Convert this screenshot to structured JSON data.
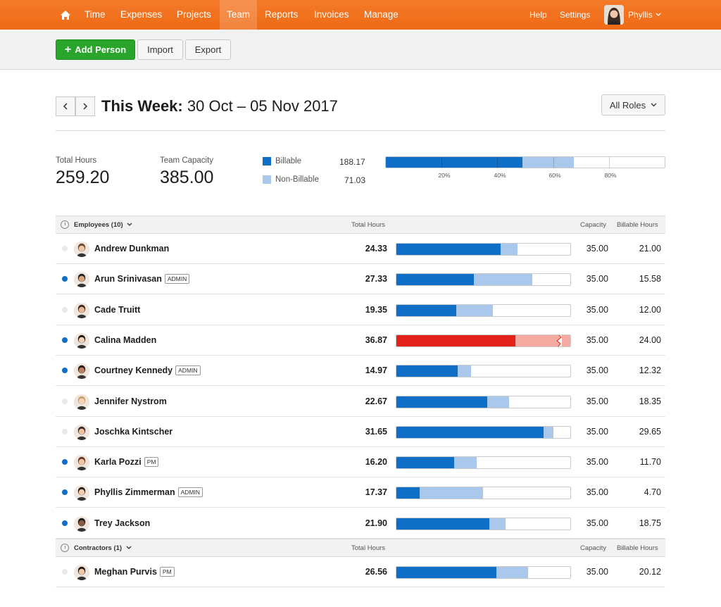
{
  "nav": {
    "items": [
      "Time",
      "Expenses",
      "Projects",
      "Team",
      "Reports",
      "Invoices",
      "Manage"
    ],
    "active": "Team",
    "help": "Help",
    "settings": "Settings",
    "user": "Phyllis"
  },
  "toolbar": {
    "add_label": "Add Person",
    "import_label": "Import",
    "export_label": "Export"
  },
  "week": {
    "prefix": "This Week:",
    "range": "30 Oct – 05 Nov 2017",
    "roles_label": "All Roles"
  },
  "summary": {
    "total_hours_label": "Total Hours",
    "total_hours": "259.20",
    "capacity_label": "Team Capacity",
    "capacity": "385.00",
    "billable_label": "Billable",
    "billable": "188.17",
    "nonbillable_label": "Non-Billable",
    "nonbillable": "71.03",
    "ticks": [
      "20%",
      "40%",
      "60%",
      "80%"
    ]
  },
  "colors": {
    "billable": "#0f6fc6",
    "nonbillable": "#a9c8ec",
    "over": "#e3231b",
    "over_light": "#f6aba2",
    "nav": "#f36c1d",
    "add": "#2aa52b"
  },
  "employees": {
    "header": "Employees (10)",
    "col_total": "Total Hours",
    "col_capacity": "Capacity",
    "col_billable": "Billable Hours",
    "rows": [
      {
        "name": "Andrew Dunkman",
        "badge": "",
        "active": false,
        "total": "24.33",
        "capacity": "35.00",
        "billable": "21.00",
        "billable_frac": 0.6,
        "total_frac": 0.695
      },
      {
        "name": "Arun Srinivasan",
        "badge": "ADMIN",
        "active": true,
        "total": "27.33",
        "capacity": "35.00",
        "billable": "15.58",
        "billable_frac": 0.445,
        "total_frac": 0.781
      },
      {
        "name": "Cade Truitt",
        "badge": "",
        "active": false,
        "total": "19.35",
        "capacity": "35.00",
        "billable": "12.00",
        "billable_frac": 0.343,
        "total_frac": 0.553
      },
      {
        "name": "Calina Madden",
        "badge": "",
        "active": true,
        "total": "36.87",
        "capacity": "35.00",
        "billable": "24.00",
        "billable_frac": 0.686,
        "total_frac": 1.0,
        "over": true
      },
      {
        "name": "Courtney Kennedy",
        "badge": "ADMIN",
        "active": true,
        "total": "14.97",
        "capacity": "35.00",
        "billable": "12.32",
        "billable_frac": 0.352,
        "total_frac": 0.428
      },
      {
        "name": "Jennifer Nystrom",
        "badge": "",
        "active": false,
        "total": "22.67",
        "capacity": "35.00",
        "billable": "18.35",
        "billable_frac": 0.524,
        "total_frac": 0.648
      },
      {
        "name": "Joschka Kintscher",
        "badge": "",
        "active": false,
        "total": "31.65",
        "capacity": "35.00",
        "billable": "29.65",
        "billable_frac": 0.847,
        "total_frac": 0.904
      },
      {
        "name": "Karla Pozzi",
        "badge": "PM",
        "active": true,
        "total": "16.20",
        "capacity": "35.00",
        "billable": "11.70",
        "billable_frac": 0.334,
        "total_frac": 0.463
      },
      {
        "name": "Phyllis Zimmerman",
        "badge": "ADMIN",
        "active": true,
        "total": "17.37",
        "capacity": "35.00",
        "billable": "4.70",
        "billable_frac": 0.134,
        "total_frac": 0.496
      },
      {
        "name": "Trey Jackson",
        "badge": "",
        "active": true,
        "total": "21.90",
        "capacity": "35.00",
        "billable": "18.75",
        "billable_frac": 0.536,
        "total_frac": 0.626
      }
    ]
  },
  "contractors": {
    "header": "Contractors (1)",
    "col_total": "Total Hours",
    "col_capacity": "Capacity",
    "col_billable": "Billable Hours",
    "rows": [
      {
        "name": "Meghan Purvis",
        "badge": "PM",
        "active": false,
        "total": "26.56",
        "capacity": "35.00",
        "billable": "20.12",
        "billable_frac": 0.575,
        "total_frac": 0.759
      }
    ]
  }
}
